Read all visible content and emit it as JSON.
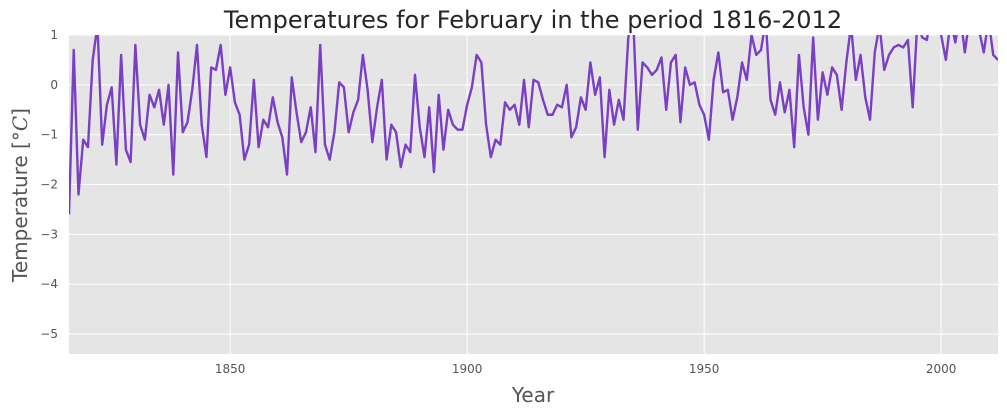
{
  "chart_data": {
    "type": "line",
    "title": "Temperatures for February in the period 1816-2012",
    "xlabel": "Year",
    "ylabel_text": "Temperature [",
    "ylabel_unit": "°C",
    "ylabel_close": "]",
    "xlim": [
      1816,
      2012
    ],
    "ylim": [
      -5.4,
      1.0
    ],
    "xticks": [
      1850,
      1900,
      1950,
      2000
    ],
    "xtick_labels": [
      "1850",
      "1900",
      "1950",
      "2000"
    ],
    "yticks": [
      1,
      0,
      -1,
      -2,
      -3,
      -4,
      -5
    ],
    "ytick_labels": [
      "1",
      "0",
      "−1",
      "−2",
      "−3",
      "−4",
      "−5"
    ],
    "grid": true,
    "background": "#e5e5e5",
    "grid_color": "#ffffff",
    "line_color": "#7b3fc4",
    "series": [
      {
        "x": [
          1816,
          1817,
          1818,
          1819,
          1820,
          1821,
          1822,
          1823,
          1824,
          1825,
          1826,
          1827,
          1828,
          1829,
          1830,
          1831,
          1832,
          1833,
          1834,
          1835,
          1836,
          1837,
          1838,
          1839,
          1840,
          1841,
          1842,
          1843,
          1844,
          1845,
          1846,
          1847,
          1848,
          1849,
          1850,
          1851,
          1852,
          1853,
          1854,
          1855,
          1856,
          1857,
          1858,
          1859,
          1860,
          1861,
          1862,
          1863,
          1864,
          1865,
          1866,
          1867,
          1868,
          1869,
          1870,
          1871,
          1872,
          1873,
          1874,
          1875,
          1876,
          1877,
          1878,
          1879,
          1880,
          1881,
          1882,
          1883,
          1884,
          1885,
          1886,
          1887,
          1888,
          1889,
          1890,
          1891,
          1892,
          1893,
          1894,
          1895,
          1896,
          1897,
          1898,
          1899,
          1900,
          1901,
          1902,
          1903,
          1904,
          1905,
          1906,
          1907,
          1908,
          1909,
          1910,
          1911,
          1912,
          1913,
          1914,
          1915,
          1916,
          1917,
          1918,
          1919,
          1920,
          1921,
          1922,
          1923,
          1924,
          1925,
          1926,
          1927,
          1928,
          1929,
          1930,
          1931,
          1932,
          1933,
          1934,
          1935,
          1936,
          1937,
          1938,
          1939,
          1940,
          1941,
          1942,
          1943,
          1944,
          1945,
          1946,
          1947,
          1948,
          1949,
          1950,
          1951,
          1952,
          1953,
          1954,
          1955,
          1956,
          1957,
          1958,
          1959,
          1960,
          1961,
          1962,
          1963,
          1964,
          1965,
          1966,
          1967,
          1968,
          1969,
          1970,
          1971,
          1972,
          1973,
          1974,
          1975,
          1976,
          1977,
          1978,
          1979,
          1980,
          1981,
          1982,
          1983,
          1984,
          1985,
          1986,
          1987,
          1988,
          1989,
          1990,
          1991,
          1992,
          1993,
          1994,
          1995,
          1996,
          1997,
          1998,
          1999,
          2000,
          2001,
          2002,
          2003,
          2004,
          2005,
          2006,
          2007,
          2008,
          2009,
          2010,
          2011,
          2012
        ],
        "y": [
          -2.6,
          0.7,
          -2.2,
          -1.1,
          -1.25,
          0.5,
          1.2,
          -1.2,
          -0.4,
          -0.05,
          -1.6,
          0.6,
          -1.3,
          -1.55,
          0.8,
          -0.8,
          -1.1,
          -0.2,
          -0.45,
          -0.1,
          -0.8,
          0.0,
          -1.8,
          0.65,
          -0.95,
          -0.75,
          -0.1,
          0.8,
          -0.8,
          -1.45,
          0.35,
          0.3,
          0.8,
          -0.2,
          0.35,
          -0.35,
          -0.6,
          -1.5,
          -1.2,
          0.1,
          -1.25,
          -0.7,
          -0.85,
          -0.25,
          -0.75,
          -1.05,
          -1.8,
          0.15,
          -0.55,
          -1.15,
          -0.95,
          -0.45,
          -1.35,
          0.8,
          -1.2,
          -1.5,
          -0.95,
          0.05,
          -0.05,
          -0.95,
          -0.55,
          -0.3,
          0.6,
          -0.1,
          -1.15,
          -0.45,
          0.1,
          -1.5,
          -0.8,
          -0.95,
          -1.65,
          -1.2,
          -1.35,
          0.2,
          -0.85,
          -1.45,
          -0.45,
          -1.75,
          -0.2,
          -1.3,
          -0.5,
          -0.8,
          -0.9,
          -0.9,
          -0.4,
          -0.05,
          0.6,
          0.45,
          -0.8,
          -1.45,
          -1.1,
          -1.2,
          -0.35,
          -0.5,
          -0.4,
          -0.8,
          0.1,
          -0.85,
          0.1,
          0.05,
          -0.3,
          -0.6,
          -0.6,
          -0.4,
          -0.45,
          0.0,
          -1.05,
          -0.85,
          -0.25,
          -0.5,
          0.45,
          -0.2,
          0.15,
          -1.45,
          -0.1,
          -0.8,
          -0.3,
          -0.7,
          0.95,
          1.4,
          -0.9,
          0.45,
          0.35,
          0.2,
          0.3,
          0.55,
          -0.5,
          0.45,
          0.6,
          -0.75,
          0.35,
          0.0,
          0.05,
          -0.4,
          -0.6,
          -1.1,
          0.1,
          0.65,
          -0.15,
          -0.1,
          -0.7,
          -0.25,
          0.45,
          0.1,
          1.0,
          0.6,
          0.7,
          1.3,
          -0.3,
          -0.6,
          0.05,
          -0.55,
          -0.1,
          -1.25,
          0.6,
          -0.45,
          -1.0,
          0.95,
          -0.7,
          0.25,
          -0.2,
          0.35,
          0.2,
          -0.5,
          0.45,
          1.2,
          0.1,
          0.6,
          -0.25,
          -0.7,
          0.65,
          1.2,
          0.3,
          0.6,
          0.75,
          0.8,
          0.75,
          0.9,
          -0.45,
          1.3,
          0.95,
          0.9,
          1.6,
          1.45,
          1.0,
          0.5,
          1.3,
          0.85,
          1.45,
          0.65,
          1.35,
          1.5,
          1.1,
          0.65,
          1.3,
          0.6,
          0.5
        ]
      }
    ]
  }
}
